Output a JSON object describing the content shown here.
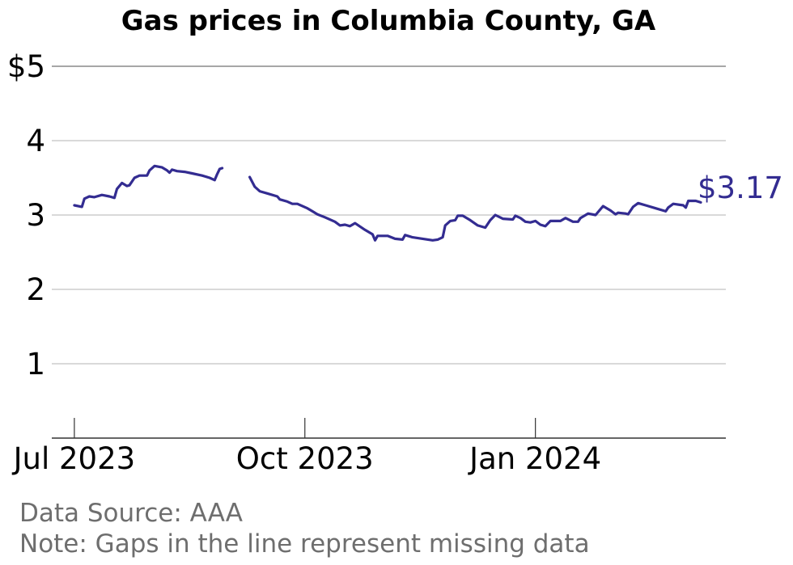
{
  "chart_data": {
    "type": "line",
    "title": "Gas prices in Columbia County, GA",
    "xlabel": "",
    "ylabel": "",
    "ylim": [
      0,
      5
    ],
    "xlim": [
      "2023-06-22",
      "2024-03-17"
    ],
    "grid": true,
    "y_ticks": [
      {
        "value": 1,
        "label": "1"
      },
      {
        "value": 2,
        "label": "2"
      },
      {
        "value": 3,
        "label": "3"
      },
      {
        "value": 4,
        "label": "4"
      },
      {
        "value": 5,
        "label": "$5"
      }
    ],
    "x_ticks": [
      {
        "date": "2023-07-01",
        "label": "Jul 2023"
      },
      {
        "date": "2023-10-01",
        "label": "Oct 2023"
      },
      {
        "date": "2024-01-01",
        "label": "Jan 2024"
      }
    ],
    "line_color": "#332c91",
    "end_label": "$3.17",
    "series": [
      {
        "segments": [
          [
            [
              "2023-07-01",
              3.13
            ],
            [
              "2023-07-04",
              3.11
            ],
            [
              "2023-07-05",
              3.22
            ],
            [
              "2023-07-07",
              3.25
            ],
            [
              "2023-07-09",
              3.24
            ],
            [
              "2023-07-12",
              3.27
            ],
            [
              "2023-07-15",
              3.25
            ],
            [
              "2023-07-17",
              3.23
            ],
            [
              "2023-07-18",
              3.35
            ],
            [
              "2023-07-20",
              3.43
            ],
            [
              "2023-07-22",
              3.39
            ],
            [
              "2023-07-23",
              3.4
            ],
            [
              "2023-07-25",
              3.5
            ],
            [
              "2023-07-27",
              3.53
            ],
            [
              "2023-07-30",
              3.53
            ],
            [
              "2023-07-31",
              3.6
            ],
            [
              "2023-08-02",
              3.66
            ],
            [
              "2023-08-05",
              3.64
            ],
            [
              "2023-08-07",
              3.6
            ],
            [
              "2023-08-08",
              3.57
            ],
            [
              "2023-08-09",
              3.61
            ],
            [
              "2023-08-11",
              3.59
            ],
            [
              "2023-08-14",
              3.58
            ],
            [
              "2023-08-17",
              3.56
            ],
            [
              "2023-08-21",
              3.53
            ],
            [
              "2023-08-24",
              3.5
            ],
            [
              "2023-08-26",
              3.47
            ],
            [
              "2023-08-27",
              3.55
            ],
            [
              "2023-08-28",
              3.62
            ],
            [
              "2023-08-29",
              3.63
            ]
          ],
          [
            [
              "2023-09-09",
              3.51
            ],
            [
              "2023-09-11",
              3.38
            ],
            [
              "2023-09-13",
              3.32
            ],
            [
              "2023-09-16",
              3.29
            ],
            [
              "2023-09-20",
              3.25
            ],
            [
              "2023-09-21",
              3.21
            ],
            [
              "2023-09-24",
              3.18
            ],
            [
              "2023-09-26",
              3.15
            ],
            [
              "2023-09-28",
              3.15
            ],
            [
              "2023-10-02",
              3.09
            ],
            [
              "2023-10-04",
              3.05
            ],
            [
              "2023-10-06",
              3.01
            ],
            [
              "2023-10-09",
              2.97
            ],
            [
              "2023-10-13",
              2.91
            ],
            [
              "2023-10-15",
              2.86
            ],
            [
              "2023-10-17",
              2.87
            ],
            [
              "2023-10-19",
              2.85
            ],
            [
              "2023-10-21",
              2.89
            ],
            [
              "2023-10-25",
              2.8
            ],
            [
              "2023-10-28",
              2.74
            ],
            [
              "2023-10-29",
              2.66
            ],
            [
              "2023-10-30",
              2.72
            ],
            [
              "2023-11-03",
              2.72
            ],
            [
              "2023-11-06",
              2.68
            ],
            [
              "2023-11-09",
              2.67
            ],
            [
              "2023-11-10",
              2.73
            ],
            [
              "2023-11-13",
              2.7
            ],
            [
              "2023-11-17",
              2.68
            ],
            [
              "2023-11-21",
              2.66
            ],
            [
              "2023-11-23",
              2.67
            ],
            [
              "2023-11-25",
              2.7
            ],
            [
              "2023-11-26",
              2.86
            ],
            [
              "2023-11-28",
              2.92
            ],
            [
              "2023-11-30",
              2.93
            ],
            [
              "2023-12-01",
              2.99
            ],
            [
              "2023-12-03",
              2.99
            ],
            [
              "2023-12-06",
              2.93
            ],
            [
              "2023-12-09",
              2.86
            ],
            [
              "2023-12-12",
              2.83
            ],
            [
              "2023-12-14",
              2.93
            ],
            [
              "2023-12-16",
              3.0
            ],
            [
              "2023-12-19",
              2.95
            ],
            [
              "2023-12-23",
              2.94
            ],
            [
              "2023-12-24",
              2.99
            ],
            [
              "2023-12-26",
              2.96
            ],
            [
              "2023-12-28",
              2.91
            ],
            [
              "2023-12-30",
              2.9
            ],
            [
              "2024-01-01",
              2.92
            ],
            [
              "2024-01-03",
              2.87
            ],
            [
              "2024-01-05",
              2.85
            ],
            [
              "2024-01-07",
              2.92
            ],
            [
              "2024-01-09",
              2.92
            ],
            [
              "2024-01-11",
              2.92
            ],
            [
              "2024-01-13",
              2.96
            ],
            [
              "2024-01-16",
              2.91
            ],
            [
              "2024-01-18",
              2.91
            ],
            [
              "2024-01-19",
              2.96
            ],
            [
              "2024-01-22",
              3.02
            ],
            [
              "2024-01-25",
              3.0
            ],
            [
              "2024-01-28",
              3.12
            ],
            [
              "2024-01-31",
              3.06
            ],
            [
              "2024-02-02",
              3.01
            ],
            [
              "2024-02-03",
              3.03
            ],
            [
              "2024-02-06",
              3.02
            ],
            [
              "2024-02-07",
              3.01
            ],
            [
              "2024-02-09",
              3.11
            ],
            [
              "2024-02-11",
              3.16
            ],
            [
              "2024-02-14",
              3.13
            ],
            [
              "2024-02-18",
              3.09
            ],
            [
              "2024-02-22",
              3.05
            ],
            [
              "2024-02-23",
              3.1
            ],
            [
              "2024-02-25",
              3.15
            ],
            [
              "2024-02-29",
              3.13
            ],
            [
              "2024-03-01",
              3.1
            ],
            [
              "2024-03-02",
              3.19
            ],
            [
              "2024-03-05",
              3.19
            ],
            [
              "2024-03-07",
              3.17
            ]
          ]
        ]
      }
    ]
  },
  "footer": {
    "source": "Data Source: AAA",
    "note": "Note: Gaps in the line represent missing data"
  }
}
